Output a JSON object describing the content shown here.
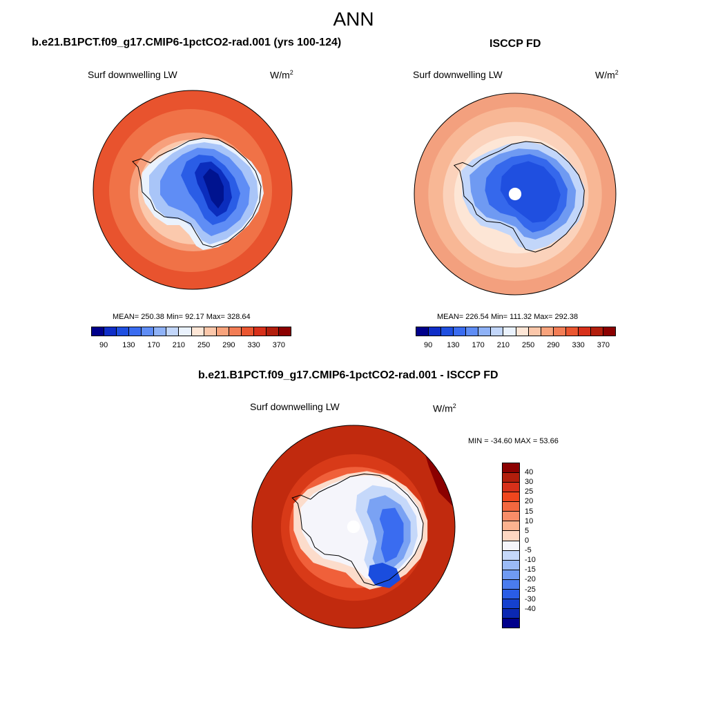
{
  "main_title": "ANN",
  "panels": [
    {
      "title": "b.e21.B1PCT.f09_g17.CMIP6-1pctCO2-rad.001 (yrs 100-124)",
      "variable": "Surf downwelling LW",
      "units_base": "W/m",
      "units_exp": "2",
      "stats": "MEAN= 250.38  Min=  92.17  Max= 328.64"
    },
    {
      "title": "ISCCP FD",
      "variable": "Surf downwelling LW",
      "units_base": "W/m",
      "units_exp": "2",
      "stats": "MEAN= 226.54  Min= 111.32  Max= 292.38"
    },
    {
      "title": "b.e21.B1PCT.f09_g17.CMIP6-1pctCO2-rad.001 - ISCCP FD",
      "variable": "Surf downwelling LW",
      "units_base": "W/m",
      "units_exp": "2",
      "stats": "MIN = -34.60 MAX =  53.66"
    }
  ],
  "colorbar_main": {
    "colors": [
      "#00008b",
      "#0f2ec8",
      "#1f4fe0",
      "#3a6cf0",
      "#5f8df5",
      "#8fb2f7",
      "#c2d6fa",
      "#eaf2fd",
      "#fde6d6",
      "#fbc7aa",
      "#f8a37c",
      "#f27d55",
      "#ea5630",
      "#d7301a",
      "#b21e0c",
      "#8b0000"
    ],
    "tick_labels": [
      "90",
      "130",
      "170",
      "210",
      "250",
      "290",
      "330",
      "370"
    ]
  },
  "colorbar_diff": {
    "colors": [
      "#8b0000",
      "#b21e0c",
      "#d7301a",
      "#f0461e",
      "#f4683f",
      "#f88d68",
      "#fbb28f",
      "#fdd7c2",
      "#f5f5fb",
      "#c5d8fa",
      "#9bbbf6",
      "#6f9af2",
      "#4a7cef",
      "#2a5de6",
      "#1541cf",
      "#0b28b3",
      "#00008b"
    ],
    "tick_labels": [
      "40",
      "30",
      "25",
      "20",
      "15",
      "10",
      "5",
      "0",
      "-5",
      "-10",
      "-15",
      "-20",
      "-25",
      "-30",
      "-40"
    ]
  },
  "map_colors": {
    "model": [
      "#e8532e",
      "#f07247",
      "#f7a07c",
      "#fbc9ad",
      "#eaf2fd",
      "#a9c5f8",
      "#5f8df5",
      "#2a5de6",
      "#0b2dbd",
      "#00138f"
    ],
    "obs": [
      "#f3a07e",
      "#f8b795",
      "#fbd2bb",
      "#fde6d6",
      "#c2d6fa",
      "#6f9af2",
      "#3568ec",
      "#1f4fe0"
    ],
    "diff": [
      "#c12a0e",
      "#d83a18",
      "#f0603a",
      "#fcdccb",
      "#f5f5fb",
      "#c5d8fa",
      "#7aa2f3",
      "#3a6cf0",
      "#1a4dde"
    ]
  }
}
